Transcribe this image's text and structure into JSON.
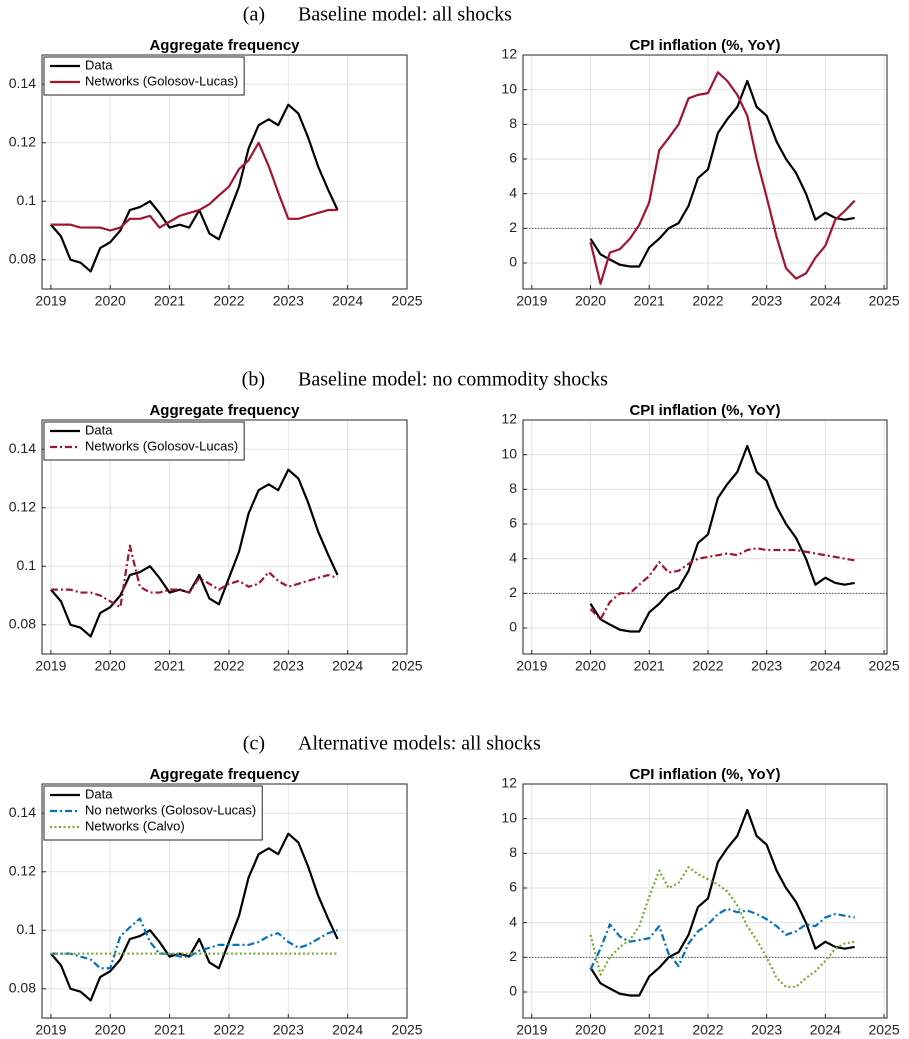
{
  "panels": [
    {
      "label": "(a)",
      "title": "Baseline model: all shocks"
    },
    {
      "label": "(b)",
      "title": "Baseline model: no commodity shocks"
    },
    {
      "label": "(c)",
      "title": "Alternative models: all shocks"
    }
  ],
  "chart_data": [
    {
      "type": "line",
      "title": "Aggregate frequency",
      "x": [
        2019,
        2019.17,
        2019.33,
        2019.5,
        2019.67,
        2019.83,
        2020,
        2020.17,
        2020.33,
        2020.5,
        2020.67,
        2020.83,
        2021,
        2021.17,
        2021.33,
        2021.5,
        2021.67,
        2021.83,
        2022,
        2022.17,
        2022.33,
        2022.5,
        2022.67,
        2022.83,
        2023,
        2023.17,
        2023.33,
        2023.5,
        2023.67,
        2023.83
      ],
      "series": [
        {
          "name": "Data",
          "color": "#000000",
          "line_style": "solid",
          "values": [
            0.092,
            0.088,
            0.08,
            0.079,
            0.076,
            0.084,
            0.086,
            0.09,
            0.097,
            0.098,
            0.1,
            0.096,
            0.091,
            0.092,
            0.091,
            0.097,
            0.089,
            0.087,
            0.096,
            0.105,
            0.118,
            0.126,
            0.128,
            0.126,
            0.133,
            0.13,
            0.122,
            0.112,
            0.104,
            0.097
          ]
        },
        {
          "name": "Networks (Golosov-Lucas)",
          "color": "#a2142f",
          "line_style": "solid",
          "values": [
            0.092,
            0.092,
            0.092,
            0.091,
            0.091,
            0.091,
            0.09,
            0.091,
            0.094,
            0.094,
            0.095,
            0.091,
            0.093,
            0.095,
            0.096,
            0.097,
            0.099,
            0.102,
            0.105,
            0.111,
            0.114,
            0.12,
            0.112,
            0.103,
            0.094,
            0.094,
            0.095,
            0.096,
            0.097,
            0.097
          ]
        }
      ],
      "xlim": [
        2018.85,
        2025
      ],
      "xticks": [
        2019,
        2020,
        2021,
        2022,
        2023,
        2024,
        2025
      ],
      "ylim": [
        0.07,
        0.15
      ],
      "yticks": [
        0.08,
        0.1,
        0.12,
        0.14
      ],
      "grid": true,
      "legend": "northwest"
    },
    {
      "type": "line",
      "title": "CPI inflation (%, YoY)",
      "x": [
        2020,
        2020.17,
        2020.33,
        2020.5,
        2020.67,
        2020.83,
        2021,
        2021.17,
        2021.33,
        2021.5,
        2021.67,
        2021.83,
        2022,
        2022.17,
        2022.33,
        2022.5,
        2022.67,
        2022.83,
        2023,
        2023.17,
        2023.33,
        2023.5,
        2023.67,
        2023.83,
        2024,
        2024.17,
        2024.33,
        2024.5
      ],
      "series": [
        {
          "color": "#000000",
          "line_style": "solid",
          "values": [
            1.4,
            0.5,
            0.2,
            -0.1,
            -0.2,
            -0.2,
            0.9,
            1.4,
            2.0,
            2.3,
            3.3,
            4.9,
            5.4,
            7.5,
            8.3,
            9.0,
            10.5,
            9.0,
            8.5,
            7.0,
            6.0,
            5.2,
            4.0,
            2.5,
            2.9,
            2.6,
            2.5,
            2.6
          ]
        },
        {
          "color": "#a2142f",
          "line_style": "solid",
          "values": [
            1.2,
            -1.2,
            0.6,
            0.8,
            1.4,
            2.2,
            3.5,
            6.5,
            7.2,
            8.0,
            9.5,
            9.7,
            9.8,
            11.0,
            10.5,
            9.7,
            8.5,
            6.0,
            3.8,
            1.5,
            -0.3,
            -0.9,
            -0.6,
            0.3,
            1.0,
            2.5,
            3.0,
            3.6
          ]
        }
      ],
      "xlim": [
        2018.85,
        2025.05
      ],
      "xticks": [
        2019,
        2020,
        2021,
        2022,
        2023,
        2024,
        2025
      ],
      "ylim": [
        -1.5,
        12
      ],
      "yticks": [
        0,
        2,
        4,
        6,
        8,
        10,
        12
      ],
      "grid": true,
      "reference_line": 2
    },
    {
      "type": "line",
      "title": "Aggregate frequency",
      "x": [
        2019,
        2019.17,
        2019.33,
        2019.5,
        2019.67,
        2019.83,
        2020,
        2020.17,
        2020.33,
        2020.5,
        2020.67,
        2020.83,
        2021,
        2021.17,
        2021.33,
        2021.5,
        2021.67,
        2021.83,
        2022,
        2022.17,
        2022.33,
        2022.5,
        2022.67,
        2022.83,
        2023,
        2023.17,
        2023.33,
        2023.5,
        2023.67,
        2023.83
      ],
      "series": [
        {
          "name": "Data",
          "color": "#000000",
          "line_style": "solid",
          "values": [
            0.092,
            0.088,
            0.08,
            0.079,
            0.076,
            0.084,
            0.086,
            0.09,
            0.097,
            0.098,
            0.1,
            0.096,
            0.091,
            0.092,
            0.091,
            0.097,
            0.089,
            0.087,
            0.096,
            0.105,
            0.118,
            0.126,
            0.128,
            0.126,
            0.133,
            0.13,
            0.122,
            0.112,
            0.104,
            0.097
          ]
        },
        {
          "name": "Networks (Golosov-Lucas)",
          "color": "#a2142f",
          "line_style": "dashdot",
          "values": [
            0.092,
            0.092,
            0.092,
            0.091,
            0.091,
            0.09,
            0.088,
            0.086,
            0.107,
            0.093,
            0.091,
            0.091,
            0.092,
            0.092,
            0.091,
            0.096,
            0.094,
            0.092,
            0.094,
            0.095,
            0.093,
            0.094,
            0.098,
            0.095,
            0.093,
            0.094,
            0.095,
            0.096,
            0.097,
            0.096
          ]
        }
      ],
      "xlim": [
        2018.85,
        2025
      ],
      "xticks": [
        2019,
        2020,
        2021,
        2022,
        2023,
        2024,
        2025
      ],
      "ylim": [
        0.07,
        0.15
      ],
      "yticks": [
        0.08,
        0.1,
        0.12,
        0.14
      ],
      "grid": true,
      "legend": "northwest"
    },
    {
      "type": "line",
      "title": "CPI inflation (%, YoY)",
      "x": [
        2020,
        2020.17,
        2020.33,
        2020.5,
        2020.67,
        2020.83,
        2021,
        2021.17,
        2021.33,
        2021.5,
        2021.67,
        2021.83,
        2022,
        2022.17,
        2022.33,
        2022.5,
        2022.67,
        2022.83,
        2023,
        2023.17,
        2023.33,
        2023.5,
        2023.67,
        2023.83,
        2024,
        2024.17,
        2024.33,
        2024.5
      ],
      "series": [
        {
          "color": "#000000",
          "line_style": "solid",
          "values": [
            1.4,
            0.5,
            0.2,
            -0.1,
            -0.2,
            -0.2,
            0.9,
            1.4,
            2.0,
            2.3,
            3.3,
            4.9,
            5.4,
            7.5,
            8.3,
            9.0,
            10.5,
            9.0,
            8.5,
            7.0,
            6.0,
            5.2,
            4.0,
            2.5,
            2.9,
            2.6,
            2.5,
            2.6
          ]
        },
        {
          "color": "#a2142f",
          "line_style": "dashdot",
          "values": [
            1.1,
            0.5,
            1.5,
            2.0,
            2.0,
            2.5,
            3.0,
            3.8,
            3.2,
            3.3,
            3.7,
            4.0,
            4.1,
            4.2,
            4.3,
            4.2,
            4.5,
            4.6,
            4.5,
            4.5,
            4.5,
            4.5,
            4.4,
            4.3,
            4.2,
            4.1,
            4.0,
            3.9
          ]
        }
      ],
      "xlim": [
        2018.85,
        2025.05
      ],
      "xticks": [
        2019,
        2020,
        2021,
        2022,
        2023,
        2024,
        2025
      ],
      "ylim": [
        -1.5,
        12
      ],
      "yticks": [
        0,
        2,
        4,
        6,
        8,
        10,
        12
      ],
      "grid": true,
      "reference_line": 2
    },
    {
      "type": "line",
      "title": "Aggregate frequency",
      "x": [
        2019,
        2019.17,
        2019.33,
        2019.5,
        2019.67,
        2019.83,
        2020,
        2020.17,
        2020.33,
        2020.5,
        2020.67,
        2020.83,
        2021,
        2021.17,
        2021.33,
        2021.5,
        2021.67,
        2021.83,
        2022,
        2022.17,
        2022.33,
        2022.5,
        2022.67,
        2022.83,
        2023,
        2023.17,
        2023.33,
        2023.5,
        2023.67,
        2023.83
      ],
      "series": [
        {
          "name": "Data",
          "color": "#000000",
          "line_style": "solid",
          "values": [
            0.092,
            0.088,
            0.08,
            0.079,
            0.076,
            0.084,
            0.086,
            0.09,
            0.097,
            0.098,
            0.1,
            0.096,
            0.091,
            0.092,
            0.091,
            0.097,
            0.089,
            0.087,
            0.096,
            0.105,
            0.118,
            0.126,
            0.128,
            0.126,
            0.133,
            0.13,
            0.122,
            0.112,
            0.104,
            0.097
          ]
        },
        {
          "name": "No networks (Golosov-Lucas)",
          "color": "#0072bd",
          "line_style": "dashdot",
          "values": [
            0.092,
            0.092,
            0.092,
            0.091,
            0.09,
            0.087,
            0.087,
            0.098,
            0.101,
            0.104,
            0.096,
            0.092,
            0.092,
            0.091,
            0.091,
            0.093,
            0.094,
            0.095,
            0.095,
            0.095,
            0.095,
            0.096,
            0.098,
            0.099,
            0.096,
            0.094,
            0.095,
            0.097,
            0.099,
            0.1
          ]
        },
        {
          "name": "Networks (Calvo)",
          "color": "#77ac30",
          "line_style": "dotted",
          "values": [
            0.092,
            0.092,
            0.092,
            0.092,
            0.092,
            0.092,
            0.092,
            0.092,
            0.092,
            0.092,
            0.092,
            0.092,
            0.092,
            0.092,
            0.092,
            0.092,
            0.092,
            0.092,
            0.092,
            0.092,
            0.092,
            0.092,
            0.092,
            0.092,
            0.092,
            0.092,
            0.092,
            0.092,
            0.092,
            0.092
          ]
        }
      ],
      "xlim": [
        2018.85,
        2025
      ],
      "xticks": [
        2019,
        2020,
        2021,
        2022,
        2023,
        2024,
        2025
      ],
      "ylim": [
        0.07,
        0.15
      ],
      "yticks": [
        0.08,
        0.1,
        0.12,
        0.14
      ],
      "grid": true,
      "legend": "northwest"
    },
    {
      "type": "line",
      "title": "CPI inflation (%, YoY)",
      "x": [
        2020,
        2020.17,
        2020.33,
        2020.5,
        2020.67,
        2020.83,
        2021,
        2021.17,
        2021.33,
        2021.5,
        2021.67,
        2021.83,
        2022,
        2022.17,
        2022.33,
        2022.5,
        2022.67,
        2022.83,
        2023,
        2023.17,
        2023.33,
        2023.5,
        2023.67,
        2023.83,
        2024,
        2024.17,
        2024.33,
        2024.5
      ],
      "series": [
        {
          "color": "#000000",
          "line_style": "solid",
          "values": [
            1.4,
            0.5,
            0.2,
            -0.1,
            -0.2,
            -0.2,
            0.9,
            1.4,
            2.0,
            2.3,
            3.3,
            4.9,
            5.4,
            7.5,
            8.3,
            9.0,
            10.5,
            9.0,
            8.5,
            7.0,
            6.0,
            5.2,
            4.0,
            2.5,
            2.9,
            2.6,
            2.5,
            2.6
          ]
        },
        {
          "color": "#0072bd",
          "line_style": "dashdot",
          "values": [
            1.3,
            2.5,
            3.9,
            3.2,
            2.9,
            3.0,
            3.1,
            3.8,
            2.2,
            1.5,
            2.8,
            3.5,
            3.9,
            4.5,
            4.8,
            4.6,
            4.7,
            4.5,
            4.2,
            3.8,
            3.3,
            3.5,
            3.9,
            3.8,
            4.3,
            4.5,
            4.4,
            4.3
          ]
        },
        {
          "color": "#77ac30",
          "line_style": "dotted",
          "values": [
            3.3,
            1.0,
            2.0,
            2.6,
            3.0,
            3.8,
            5.5,
            7.0,
            6.0,
            6.3,
            7.2,
            6.8,
            6.5,
            6.2,
            5.8,
            5.0,
            3.8,
            3.0,
            2.0,
            0.8,
            0.3,
            0.3,
            0.8,
            1.2,
            1.8,
            2.5,
            2.8,
            2.9
          ]
        }
      ],
      "xlim": [
        2018.85,
        2025.05
      ],
      "xticks": [
        2019,
        2020,
        2021,
        2022,
        2023,
        2024,
        2025
      ],
      "ylim": [
        -1.5,
        12
      ],
      "yticks": [
        0,
        2,
        4,
        6,
        8,
        10,
        12
      ],
      "grid": true,
      "reference_line": 2
    }
  ]
}
